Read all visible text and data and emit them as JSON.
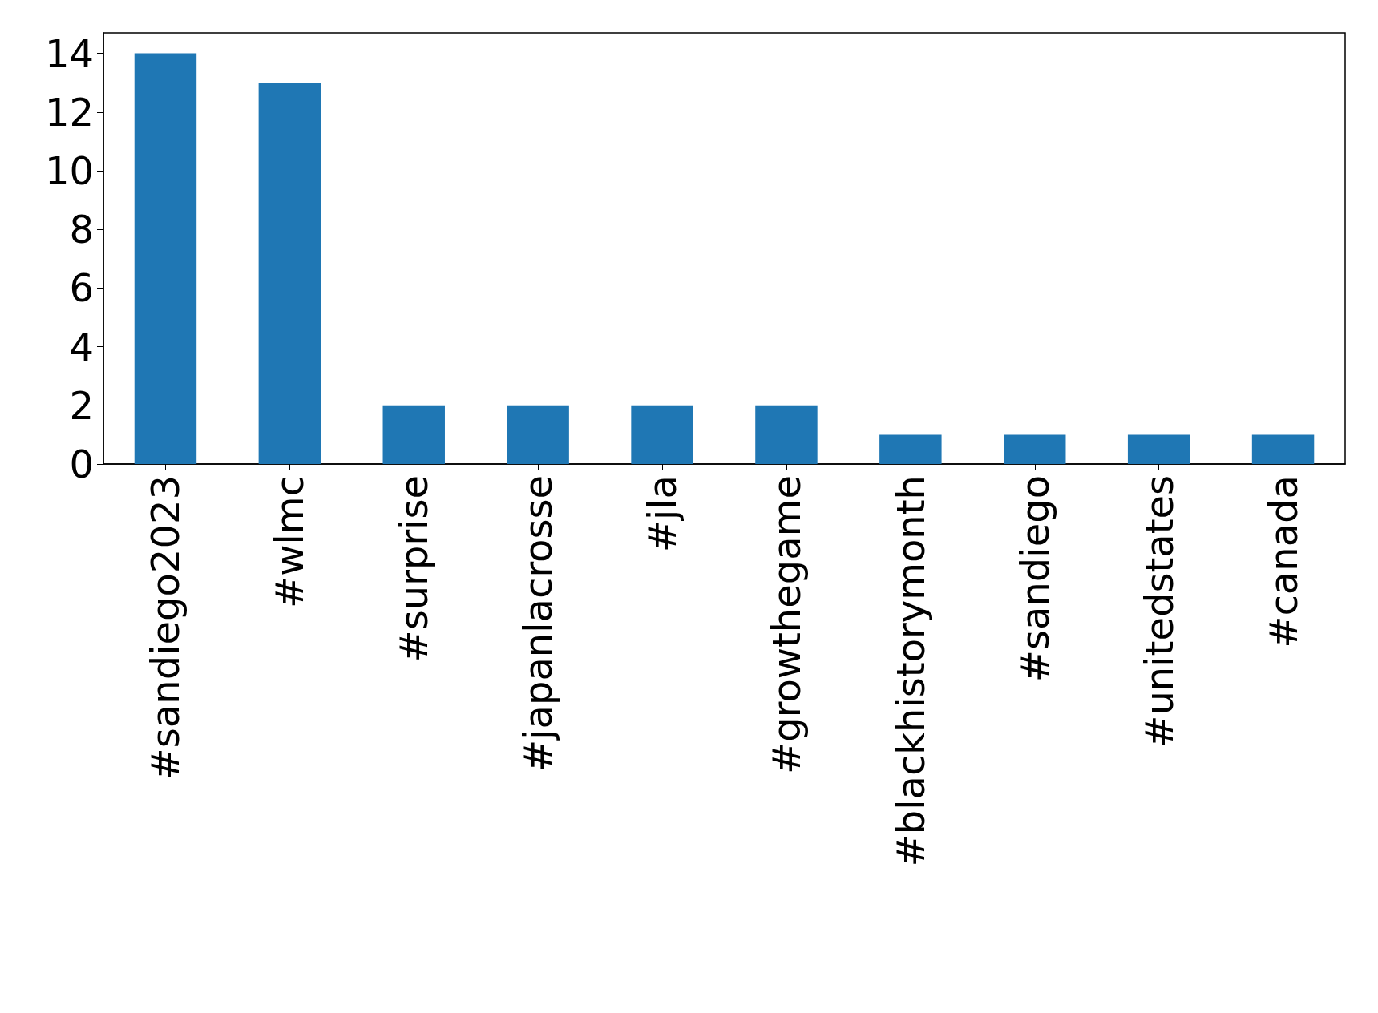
{
  "chart_data": {
    "type": "bar",
    "categories": [
      "#sandiego2023",
      "#wlmc",
      "#surprise",
      "#japanlacrosse",
      "#jla",
      "#growthegame",
      "#blackhistorymonth",
      "#sandiego",
      "#unitedstates",
      "#canada"
    ],
    "values": [
      14,
      13,
      2,
      2,
      2,
      2,
      1,
      1,
      1,
      1
    ],
    "color": "#1f77b4",
    "ylim": [
      0,
      14.7
    ],
    "yticks": [
      0,
      2,
      4,
      6,
      8,
      10,
      12,
      14
    ]
  }
}
